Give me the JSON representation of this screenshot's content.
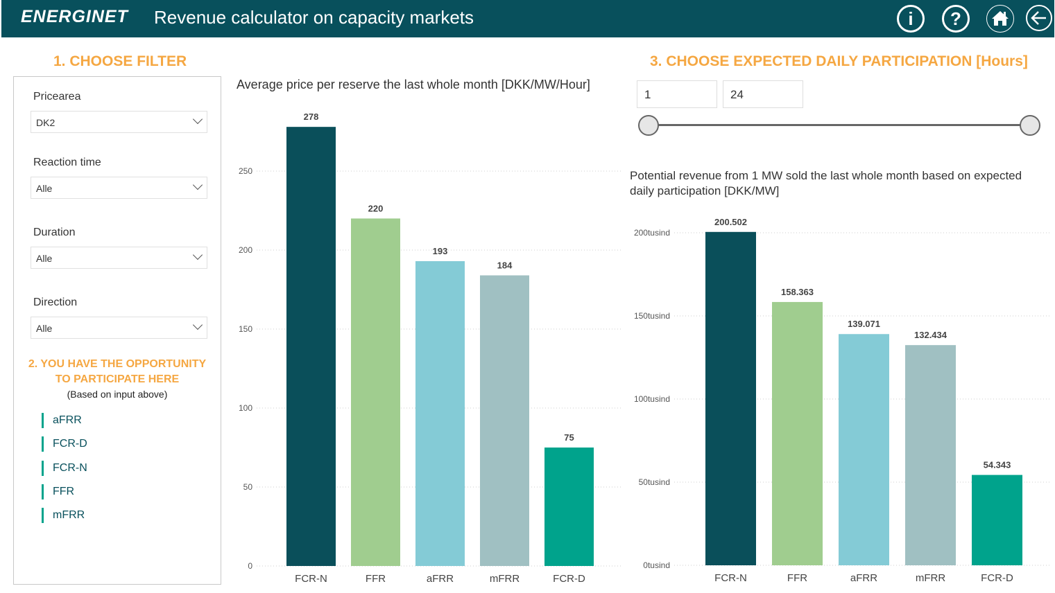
{
  "header": {
    "logo": "ENERGINET",
    "title": "Revenue calculator on capacity markets",
    "icons": [
      "info-icon",
      "help-icon",
      "home-icon",
      "back-arrow-icon"
    ]
  },
  "filter": {
    "heading": "1. CHOOSE FILTER",
    "fields": [
      {
        "label": "Pricearea",
        "value": "DK2"
      },
      {
        "label": "Reaction time",
        "value": "Alle"
      },
      {
        "label": "Duration",
        "value": "Alle"
      },
      {
        "label": "Direction",
        "value": "Alle"
      }
    ]
  },
  "opportunity": {
    "heading1": "2. YOU HAVE THE OPPORTUNITY",
    "heading2": "TO PARTICIPATE HERE",
    "sub": "(Based on input above)",
    "items": [
      "aFRR",
      "FCR-D",
      "FCR-N",
      "FFR",
      "mFRR"
    ]
  },
  "participation": {
    "heading": "3. CHOOSE EXPECTED DAILY PARTICIPATION [Hours]",
    "min": "1",
    "max": "24",
    "range": [
      1,
      24
    ],
    "range_limits": [
      1,
      24
    ]
  },
  "colors": {
    "FCR-N": "#0a4f5a",
    "FFR": "#a0cd8f",
    "aFRR": "#84cbd6",
    "mFRR": "#a0c0c2",
    "FCR-D": "#00a38c",
    "accent": "#f5a742",
    "header": "#08505c"
  },
  "chart_data": [
    {
      "type": "bar",
      "title": "Average price per reserve the last whole month [DKK/MW/Hour]",
      "categories": [
        "FCR-N",
        "FFR",
        "aFRR",
        "mFRR",
        "FCR-D"
      ],
      "values": [
        278,
        220,
        193,
        184,
        75
      ],
      "labels": [
        "278",
        "220",
        "193",
        "184",
        "75"
      ],
      "yticks": [
        0,
        50,
        100,
        150,
        200,
        250
      ],
      "ytick_labels": [
        "0",
        "50",
        "100",
        "150",
        "200",
        "250"
      ],
      "ylim": [
        0,
        280
      ],
      "grid": true
    },
    {
      "type": "bar",
      "title": "Potential revenue from 1 MW sold the last whole month based on expected daily participation [DKK/MW]",
      "title_lines": [
        "Potential revenue from 1 MW sold the last whole month based on expected",
        "daily participation [DKK/MW]"
      ],
      "categories": [
        "FCR-N",
        "FFR",
        "aFRR",
        "mFRR",
        "FCR-D"
      ],
      "values": [
        200502,
        158363,
        139071,
        132434,
        54343
      ],
      "labels": [
        "200.502",
        "158.363",
        "139.071",
        "132.434",
        "54.343"
      ],
      "yticks": [
        0,
        50000,
        100000,
        150000,
        200000
      ],
      "ytick_labels": [
        "0tusind",
        "50tusind",
        "100tusind",
        "150tusind",
        "200tusind"
      ],
      "ylim": [
        0,
        210000
      ],
      "grid": true
    }
  ]
}
